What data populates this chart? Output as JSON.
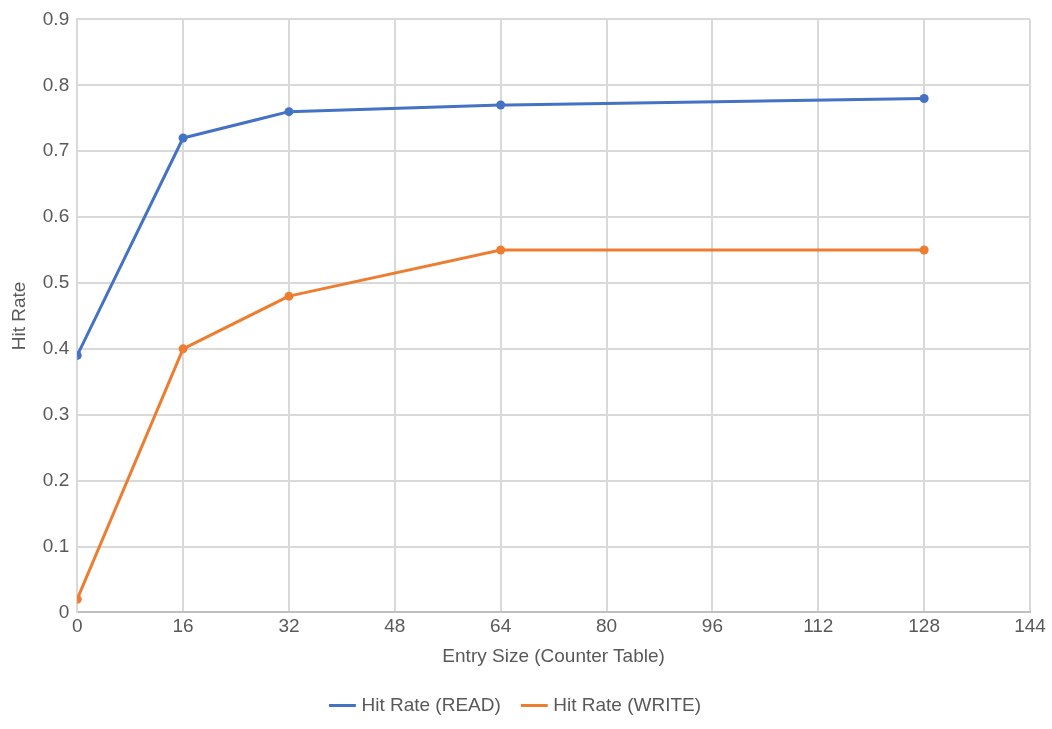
{
  "chart_data": {
    "type": "line",
    "xlabel": "Entry Size (Counter Table)",
    "ylabel": "Hit Rate",
    "x": [
      0,
      16,
      32,
      64,
      128
    ],
    "series": [
      {
        "name": "Hit Rate (READ)",
        "color": "#4472c4",
        "values": [
          0.39,
          0.72,
          0.76,
          0.77,
          0.78
        ]
      },
      {
        "name": "Hit Rate (WRITE)",
        "color": "#ed7d31",
        "values": [
          0.02,
          0.4,
          0.48,
          0.55,
          0.55
        ]
      }
    ],
    "xlim": [
      0,
      144
    ],
    "xticks": [
      0,
      16,
      32,
      48,
      64,
      80,
      96,
      112,
      128,
      144
    ],
    "ylim": [
      0,
      0.9
    ],
    "yticks": [
      0,
      0.1,
      0.2,
      0.3,
      0.4,
      0.5,
      0.6,
      0.7,
      0.8,
      0.9
    ],
    "grid": true,
    "legend": "bottom",
    "marker": "circle",
    "line_style": "solid"
  }
}
